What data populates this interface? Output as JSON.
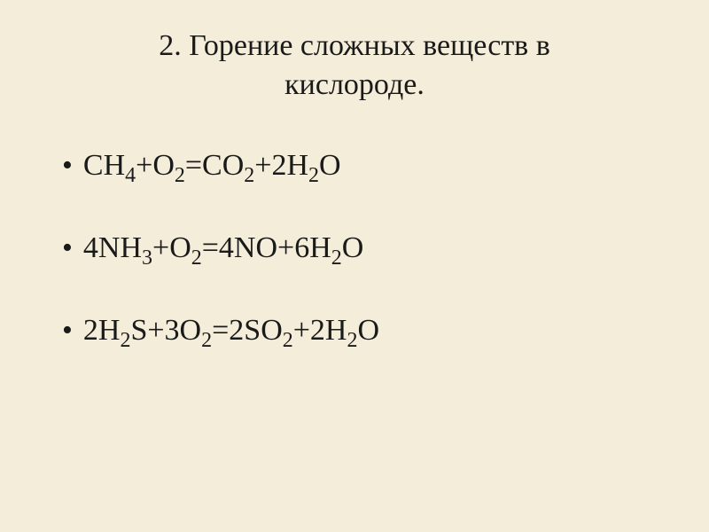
{
  "title": {
    "line1": "2. Горение сложных веществ в",
    "line2": "кислороде."
  },
  "equations": [
    {
      "parts": [
        {
          "t": "CH",
          "s": ""
        },
        {
          "t": "",
          "s": "4"
        },
        {
          "t": "+O",
          "s": ""
        },
        {
          "t": "",
          "s": "2"
        },
        {
          "t": "=CO",
          "s": ""
        },
        {
          "t": "",
          "s": "2"
        },
        {
          "t": "+2H",
          "s": ""
        },
        {
          "t": "",
          "s": "2"
        },
        {
          "t": "O",
          "s": ""
        }
      ]
    },
    {
      "parts": [
        {
          "t": "4NH",
          "s": ""
        },
        {
          "t": "",
          "s": "3"
        },
        {
          "t": "+O",
          "s": ""
        },
        {
          "t": "",
          "s": "2"
        },
        {
          "t": "=4NO+6H",
          "s": ""
        },
        {
          "t": "",
          "s": "2"
        },
        {
          "t": "O",
          "s": ""
        }
      ]
    },
    {
      "parts": [
        {
          "t": "2H",
          "s": ""
        },
        {
          "t": "",
          "s": "2"
        },
        {
          "t": "S+3O",
          "s": ""
        },
        {
          "t": "",
          "s": "2"
        },
        {
          "t": "=2SO",
          "s": ""
        },
        {
          "t": "",
          "s": "2"
        },
        {
          "t": "+2H",
          "s": ""
        },
        {
          "t": "",
          "s": "2"
        },
        {
          "t": "O",
          "s": ""
        }
      ]
    }
  ],
  "style": {
    "background_color": "#f4edda",
    "text_color": "#1a1a1a",
    "title_fontsize": 34,
    "equation_fontsize": 34,
    "subscript_fontsize": 24,
    "font_family": "Times New Roman",
    "bullet_char": "•"
  }
}
